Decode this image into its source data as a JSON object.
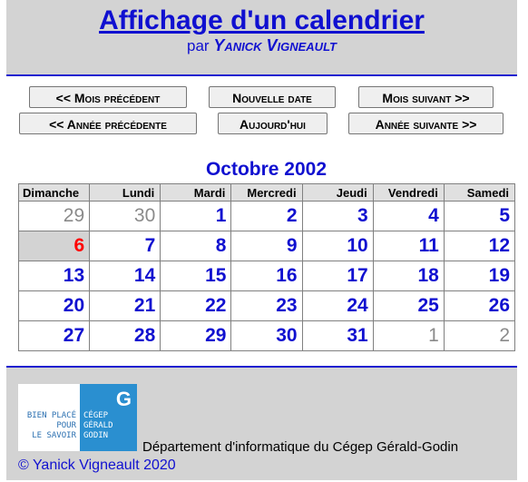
{
  "header": {
    "title": "Affichage d'un calendrier",
    "by_prefix": "par",
    "author": "Yanick Vigneault"
  },
  "buttons": {
    "prev_month": "<< Mois précédent",
    "new_date": "Nouvelle date",
    "next_month": "Mois suivant >>",
    "prev_year": "<< Année précédente",
    "today": "Aujourd'hui",
    "next_year": "Année suivante >>"
  },
  "calendar": {
    "month_title": "Octobre 2002",
    "weekdays": [
      "Dimanche",
      "Lundi",
      "Mardi",
      "Mercredi",
      "Jeudi",
      "Vendredi",
      "Samedi"
    ],
    "weeks": [
      [
        "29",
        "30",
        "1",
        "2",
        "3",
        "4",
        "5"
      ],
      [
        "6",
        "7",
        "8",
        "9",
        "10",
        "11",
        "12"
      ],
      [
        "13",
        "14",
        "15",
        "16",
        "17",
        "18",
        "19"
      ],
      [
        "20",
        "21",
        "22",
        "23",
        "24",
        "25",
        "26"
      ],
      [
        "27",
        "28",
        "29",
        "30",
        "31",
        "1",
        "2"
      ]
    ],
    "today": "6"
  },
  "footer": {
    "logo_left_text": "BIEN PLACÉ\nPOUR\nLE SAVOIR",
    "logo_right_text": "CÉGEP\nGÉRALD\nGODIN",
    "logo_mark": "G",
    "department": "Département d'informatique du Cégep Gérald-Godin",
    "copyright": "© Yanick Vigneault 2020"
  },
  "colors": {
    "accent": "#1010d0",
    "today": "#ff0000",
    "panel": "#d3d3d3"
  }
}
